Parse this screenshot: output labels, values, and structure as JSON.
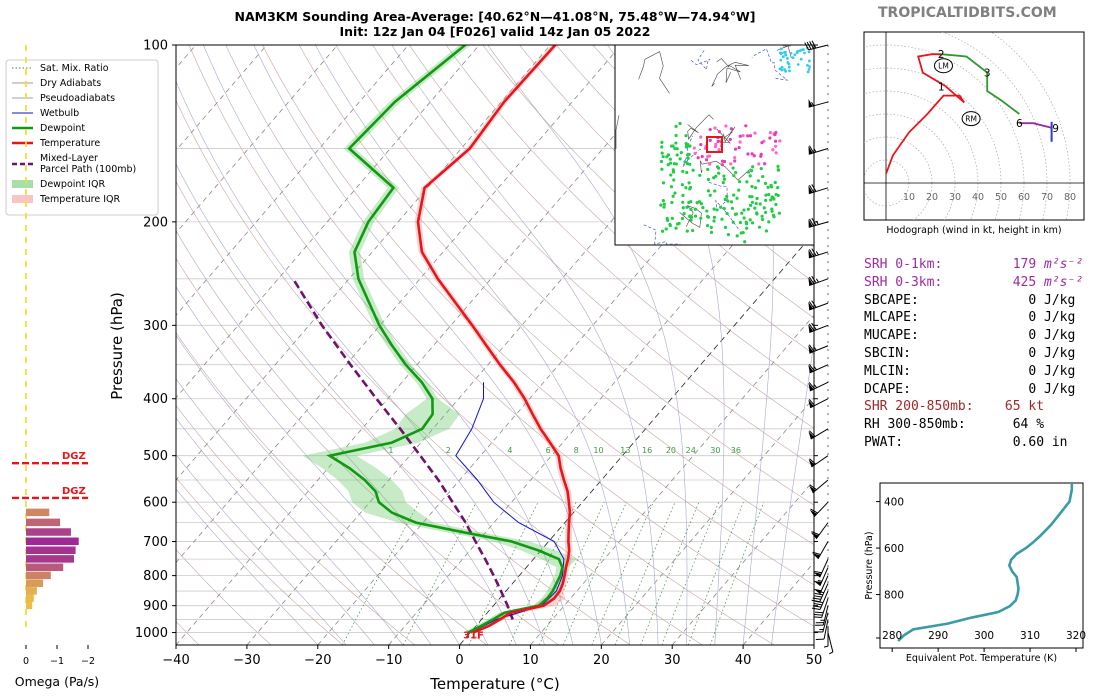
{
  "brand": "TROPICALTIDBITS.COM",
  "title_line1": "NAM3KM Sounding Area-Average: [40.62°N—41.08°N, 75.48°W—74.94°W]",
  "title_line2": "Init: 12z Jan 04 [F026] valid 14z Jan 05 2022",
  "colors": {
    "temperature": "#e8161b",
    "dewpoint": "#119a11",
    "parcel": "#6e126e",
    "wetbulb": "#1212d0",
    "dry_adiabat": "#b8908c",
    "pseudo_adiabat": "#9ea0c8",
    "mixing_ratio": "#3a8a3a",
    "srh": "#9b2ba2",
    "shr": "#a0282c",
    "theta_e": "#3a9aa8"
  },
  "legend": [
    {
      "label": "Sat. Mix. Ratio",
      "style": "dotted-green"
    },
    {
      "label": "Dry Adiabats",
      "style": "thin-brown"
    },
    {
      "label": "Pseudoadiabats",
      "style": "thin-blue-gray"
    },
    {
      "label": "Wetbulb",
      "style": "thin-blue"
    },
    {
      "label": "Dewpoint",
      "style": "thick-green"
    },
    {
      "label": "Temperature",
      "style": "thick-red"
    },
    {
      "label": "Mixed-Layer\nParcel Path (100mb)",
      "style": "dashed-purple"
    },
    {
      "label": "Dewpoint IQR",
      "style": "band-green"
    },
    {
      "label": "Temperature IQR",
      "style": "band-red"
    }
  ],
  "params": [
    {
      "label": "SRH 0-1km:",
      "value": "179",
      "unit": "m²s⁻²",
      "color": "#9b2ba2"
    },
    {
      "label": "SRH 0-3km:",
      "value": "425",
      "unit": "m²s⁻²",
      "color": "#9b2ba2"
    },
    {
      "label": "SBCAPE:",
      "value": "0",
      "unit": "J/kg",
      "color": "#000000"
    },
    {
      "label": "MLCAPE:",
      "value": "0",
      "unit": "J/kg",
      "color": "#000000"
    },
    {
      "label": "MUCAPE:",
      "value": "0",
      "unit": "J/kg",
      "color": "#000000"
    },
    {
      "label": "SBCIN:",
      "value": "0",
      "unit": "J/kg",
      "color": "#000000"
    },
    {
      "label": "MLCIN:",
      "value": "0",
      "unit": "J/kg",
      "color": "#000000"
    },
    {
      "label": "DCAPE:",
      "value": "0",
      "unit": "J/kg",
      "color": "#000000"
    },
    {
      "label": "SHR 200-850mb:",
      "value": "65",
      "unit": "kt",
      "color": "#a0282c"
    },
    {
      "label": "RH 300-850mb:",
      "value": "64",
      "unit": "%",
      "color": "#000000"
    },
    {
      "label": "PWAT:",
      "value": "0.60",
      "unit": "in",
      "color": "#000000"
    }
  ],
  "chart_data": [
    {
      "type": "line",
      "name": "skewt",
      "xlabel": "Temperature (°C)",
      "ylabel": "Pressure (hPa)",
      "xlim": [
        -40,
        50
      ],
      "ylim": [
        1050,
        100
      ],
      "y_log": true,
      "x_ticks": [
        "−40",
        "−30",
        "−20",
        "−10",
        "0",
        "10",
        "20",
        "30",
        "40",
        "50"
      ],
      "x_tick_values": [
        -40,
        -30,
        -20,
        -10,
        0,
        10,
        20,
        30,
        40,
        50
      ],
      "y_ticks": [
        "100",
        "200",
        "300",
        "400",
        "500",
        "600",
        "700",
        "800",
        "900",
        "1000"
      ],
      "y_tick_values": [
        100,
        200,
        300,
        400,
        500,
        600,
        700,
        800,
        900,
        1000
      ],
      "mixing_ratio_labels": [
        "1",
        "2",
        "4",
        "6",
        "8",
        "10",
        "13",
        "16",
        "20",
        "24",
        "30",
        "36"
      ],
      "mixing_ratio_values": [
        1,
        2,
        4,
        6,
        8,
        10,
        13,
        16,
        20,
        24,
        30,
        36
      ],
      "surface_label": "31F",
      "temperature": {
        "p": [
          1000,
          975,
          950,
          925,
          900,
          875,
          850,
          825,
          800,
          775,
          750,
          725,
          700,
          675,
          650,
          625,
          600,
          575,
          550,
          525,
          500,
          475,
          450,
          425,
          400,
          375,
          350,
          325,
          300,
          275,
          250,
          225,
          200,
          175,
          150,
          125,
          100
        ],
        "t": [
          0.4,
          1.8,
          2.6,
          3.3,
          7.1,
          7.7,
          7.6,
          7.1,
          6.4,
          5.6,
          4.9,
          4.0,
          2.8,
          1.7,
          0.6,
          -0.5,
          -1.9,
          -3.4,
          -5.3,
          -7.2,
          -9.0,
          -11.8,
          -14.8,
          -17.7,
          -20.7,
          -24.2,
          -28.3,
          -32.5,
          -37.0,
          -42.0,
          -47.5,
          -53.0,
          -57.2,
          -60.4,
          -58.8,
          -59.6,
          -59.3
        ]
      },
      "dewpoint": {
        "p": [
          1000,
          975,
          950,
          925,
          900,
          875,
          850,
          825,
          800,
          775,
          750,
          725,
          700,
          675,
          650,
          625,
          600,
          575,
          550,
          525,
          500,
          475,
          450,
          425,
          400,
          375,
          350,
          325,
          300,
          275,
          250,
          225,
          200,
          175,
          150,
          125,
          100
        ],
        "t": [
          -0.3,
          0.7,
          1.6,
          2.4,
          6.4,
          6.7,
          6.6,
          6.2,
          5.8,
          5.1,
          3.6,
          -0.3,
          -5.2,
          -13.1,
          -21.0,
          -25.6,
          -28.7,
          -30.5,
          -33.4,
          -37.0,
          -41.3,
          -34.1,
          -31.5,
          -31.8,
          -33.7,
          -37.2,
          -41.6,
          -45.8,
          -50.1,
          -54.2,
          -58.7,
          -62.5,
          -64.2,
          -64.8,
          -75.8,
          -75.0,
          -72.0
        ]
      },
      "wetbulb": {
        "p": [
          1000,
          950,
          900,
          850,
          800,
          750,
          700,
          650,
          600,
          550,
          500,
          450,
          400,
          375
        ],
        "t": [
          0.0,
          2.1,
          6.8,
          7.1,
          6.1,
          4.3,
          0.8,
          -6.5,
          -12.5,
          -17.5,
          -23.5,
          -24.5,
          -26.5,
          -28.5
        ]
      },
      "parcel": {
        "p": [
          950,
          900,
          850,
          800,
          750,
          700,
          650,
          600,
          550,
          500,
          450,
          400,
          350,
          300,
          250
        ],
        "t": [
          4.4,
          2.0,
          -0.7,
          -3.6,
          -6.8,
          -10.3,
          -14.0,
          -18.3,
          -23.0,
          -28.5,
          -34.6,
          -41.6,
          -49.4,
          -58.2,
          -67.9
        ]
      }
    },
    {
      "type": "bar",
      "name": "omega",
      "xlabel": "Omega (Pa/s)",
      "x_ticks": [
        "0",
        "−1",
        "−2"
      ],
      "x_tick_values": [
        0,
        -1,
        -2
      ],
      "dgz_label": "DGZ",
      "dgz_p": [
        515,
        590
      ],
      "p": [
        900,
        875,
        850,
        825,
        800,
        775,
        750,
        725,
        700,
        675,
        650,
        625
      ],
      "omega": [
        -0.2,
        -0.25,
        -0.35,
        -0.55,
        -0.8,
        -1.2,
        -1.55,
        -1.6,
        -1.7,
        -1.45,
        -1.1,
        -0.75
      ]
    },
    {
      "type": "line",
      "name": "hodograph",
      "caption": "Hodograph (wind in kt, height in km)",
      "ring_labels": [
        "10",
        "20",
        "30",
        "40",
        "50",
        "60",
        "70",
        "80"
      ],
      "ring_values": [
        10,
        20,
        30,
        40,
        50,
        60,
        70,
        80
      ],
      "height_labels": [
        "1",
        "2",
        "3",
        "6",
        "9"
      ],
      "height_marks": [
        {
          "label": "1",
          "u": 24,
          "v": 42
        },
        {
          "label": "2",
          "u": 24,
          "v": 56
        },
        {
          "label": "3",
          "u": 44,
          "v": 48
        },
        {
          "label": "6",
          "u": 58,
          "v": 26
        },
        {
          "label": "9",
          "u": 72,
          "v": 24
        }
      ],
      "storm_markers": [
        "LM",
        "RM"
      ],
      "lm": {
        "u": 25,
        "v": 51
      },
      "rm": {
        "u": 37,
        "v": 28
      },
      "segments": [
        {
          "km": "0-1",
          "u": [
            0,
            3,
            10,
            18,
            25,
            32,
            34,
            26
          ],
          "v": [
            4,
            12,
            22,
            30,
            38,
            38,
            35,
            42
          ]
        },
        {
          "km": "1-2",
          "u": [
            26,
            16,
            14,
            20,
            24
          ],
          "v": [
            42,
            48,
            55,
            56,
            56
          ]
        },
        {
          "km": "2-3",
          "u": [
            24,
            35,
            44
          ],
          "v": [
            56,
            55,
            48
          ]
        },
        {
          "km": "3-6",
          "u": [
            44,
            44,
            50,
            58
          ],
          "v": [
            48,
            40,
            36,
            30
          ]
        },
        {
          "km": "6-9",
          "u": [
            58,
            64,
            72
          ],
          "v": [
            26,
            26,
            24
          ]
        }
      ]
    },
    {
      "type": "line",
      "name": "theta_e",
      "xlabel": "Equivalent Pot. Temperature (K)",
      "ylabel": "Pressure (hPa)",
      "x_ticks": [
        "280",
        "290",
        "300",
        "310",
        "320"
      ],
      "x_tick_values": [
        280,
        290,
        300,
        310,
        320
      ],
      "y_ticks": [
        "400",
        "600",
        "800"
      ],
      "y_tick_values": [
        400,
        600,
        800
      ],
      "p": [
        1000,
        975,
        950,
        925,
        900,
        875,
        850,
        825,
        800,
        775,
        750,
        725,
        700,
        675,
        650,
        625,
        600,
        575,
        550,
        500,
        450,
        400,
        350,
        320
      ],
      "theta": [
        280.2,
        281.5,
        283.5,
        291,
        296,
        302,
        304.5,
        305.8,
        306.2,
        306.4,
        306.2,
        306.0,
        305.0,
        304.4,
        304.8,
        306.0,
        308.0,
        309.6,
        311.0,
        313.5,
        315.5,
        317.5,
        318.0,
        318.0
      ]
    }
  ],
  "winds": [
    {
      "p": 100,
      "u": 40,
      "v": 10
    },
    {
      "p": 125,
      "u": 55,
      "v": 15
    },
    {
      "p": 150,
      "u": 60,
      "v": 18
    },
    {
      "p": 175,
      "u": 65,
      "v": 20
    },
    {
      "p": 200,
      "u": 70,
      "v": 20
    },
    {
      "p": 225,
      "u": 70,
      "v": 22
    },
    {
      "p": 250,
      "u": 70,
      "v": 25
    },
    {
      "p": 275,
      "u": 68,
      "v": 25
    },
    {
      "p": 300,
      "u": 65,
      "v": 25
    },
    {
      "p": 325,
      "u": 62,
      "v": 25
    },
    {
      "p": 350,
      "u": 60,
      "v": 27
    },
    {
      "p": 375,
      "u": 58,
      "v": 28
    },
    {
      "p": 400,
      "u": 55,
      "v": 28
    },
    {
      "p": 450,
      "u": 50,
      "v": 30
    },
    {
      "p": 500,
      "u": 48,
      "v": 33
    },
    {
      "p": 550,
      "u": 45,
      "v": 38
    },
    {
      "p": 600,
      "u": 40,
      "v": 42
    },
    {
      "p": 650,
      "u": 35,
      "v": 48
    },
    {
      "p": 700,
      "u": 30,
      "v": 52
    },
    {
      "p": 750,
      "u": 25,
      "v": 55
    },
    {
      "p": 775,
      "u": 22,
      "v": 50
    },
    {
      "p": 800,
      "u": 20,
      "v": 45
    },
    {
      "p": 825,
      "u": 18,
      "v": 40
    },
    {
      "p": 850,
      "u": 15,
      "v": 35
    },
    {
      "p": 875,
      "u": 10,
      "v": 30
    },
    {
      "p": 900,
      "u": 6,
      "v": 25
    },
    {
      "p": 925,
      "u": 4,
      "v": 15
    },
    {
      "p": 950,
      "u": 2,
      "v": 10
    },
    {
      "p": 975,
      "u": 0,
      "v": 6
    },
    {
      "p": 1000,
      "u": -1,
      "v": 4
    }
  ]
}
